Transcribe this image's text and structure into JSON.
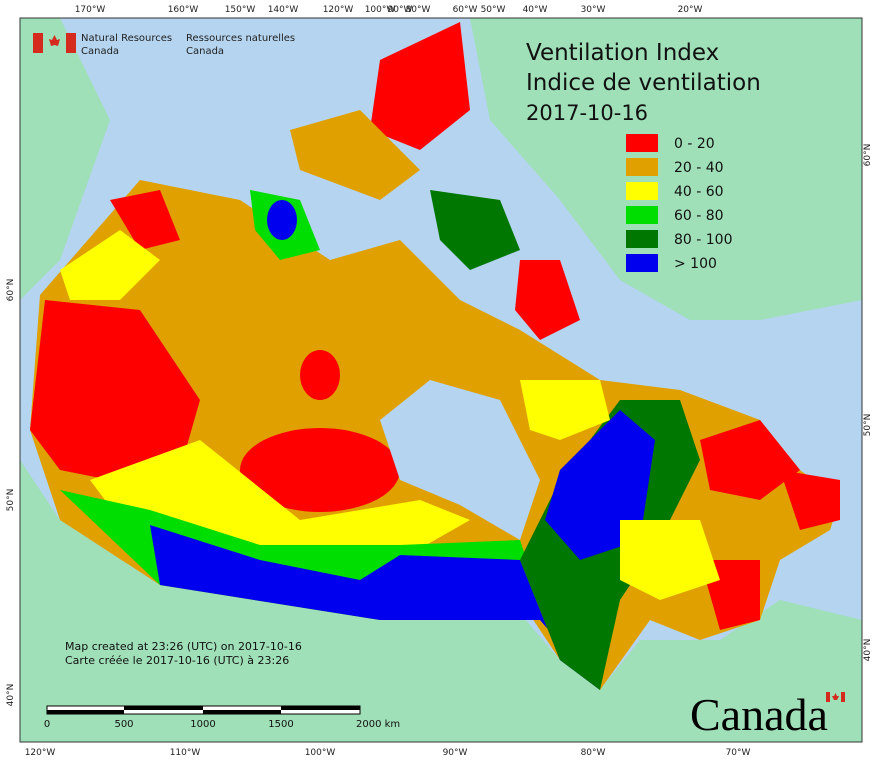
{
  "header": {
    "department_en": [
      "Natural Resources",
      "Canada"
    ],
    "department_fr": [
      "Ressources naturelles",
      "Canada"
    ]
  },
  "title": {
    "lines": [
      "Ventilation Index",
      "Indice de ventilation",
      "2017-10-16"
    ]
  },
  "legend": {
    "items": [
      {
        "label": "0 - 20",
        "color": "#ff0000"
      },
      {
        "label": "20 - 40",
        "color": "#e0a000"
      },
      {
        "label": "40 - 60",
        "color": "#ffff00"
      },
      {
        "label": "60 - 80",
        "color": "#00dd00"
      },
      {
        "label": "80 - 100",
        "color": "#007700"
      },
      {
        "label": "> 100",
        "color": "#0000ee"
      }
    ]
  },
  "axes": {
    "top": [
      "170°W",
      "160°W",
      "150°W",
      "140°W",
      "120°W",
      "100°W",
      "90°W",
      "80°W",
      "60°W",
      "50°W",
      "40°W",
      "30°W",
      "20°W"
    ],
    "bottom": [
      "120°W",
      "110°W",
      "100°W",
      "90°W",
      "80°W",
      "70°W"
    ],
    "left": [
      "60°N",
      "50°N",
      "40°N"
    ],
    "right": [
      "60°N",
      "50°N",
      "40°N"
    ]
  },
  "scale_bar": {
    "labels": [
      "0",
      "500",
      "1000",
      "1500",
      "2000 km"
    ]
  },
  "footnote": {
    "lines": [
      "Map created at 23:26 (UTC) on 2017-10-16",
      "Carte créée le 2017-10-16 (UTC) à 23:26"
    ]
  },
  "wordmark": "Canada"
}
